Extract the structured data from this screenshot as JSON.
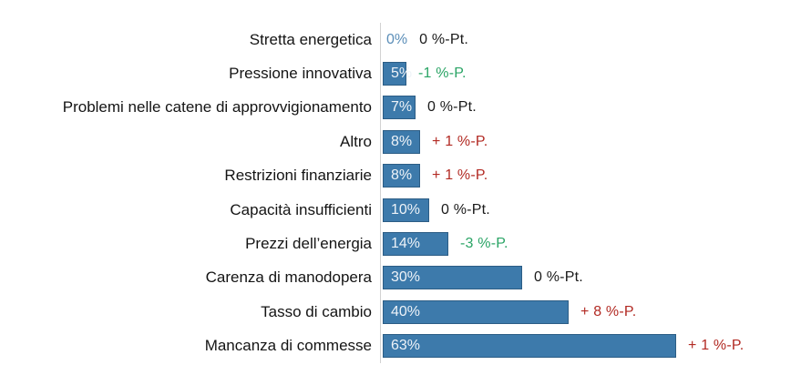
{
  "chart_data": {
    "type": "bar",
    "orientation": "horizontal",
    "categories": [
      "Stretta energetica",
      "Pressione innovativa",
      "Problemi nelle catene di approvvigionamento",
      "Altro",
      "Restrizioni finanziarie",
      "Capacità insufficienti",
      "Prezzi dell’energia",
      "Carenza di manodopera",
      "Tasso di cambio",
      "Mancanza di commesse"
    ],
    "values": [
      0,
      5,
      7,
      8,
      8,
      10,
      14,
      30,
      40,
      63
    ],
    "value_labels": [
      "0%",
      "5%",
      "7%",
      "8%",
      "8%",
      "10%",
      "14%",
      "30%",
      "40%",
      "63%"
    ],
    "delta_labels": [
      "0 %-Pt.",
      "-1 %-P.",
      "0 %-Pt.",
      "+ 1 %-P.",
      "+ 1 %-P.",
      "0 %-Pt.",
      "-3 %-P.",
      "0 %-Pt.",
      "+ 8 %-P.",
      "+ 1 %-P."
    ],
    "delta_trends": [
      "neutral",
      "decrease",
      "neutral",
      "increase",
      "increase",
      "neutral",
      "decrease",
      "neutral",
      "increase",
      "increase"
    ],
    "xlim": [
      0,
      70
    ],
    "grid": false,
    "legend": "none",
    "value_axis_visible": false
  },
  "colors": {
    "bar_fill": "#3d7aab",
    "bar_border": "#2c5d85",
    "value_inside": "#eef3f8",
    "value_outside": "#5b8eb8",
    "delta_neutral": "#1a1a1a",
    "delta_decrease": "#2aa465",
    "delta_increase": "#b22a23",
    "axis_line": "#d2d2d2",
    "category_text": "#141414",
    "background": "#ffffff"
  }
}
